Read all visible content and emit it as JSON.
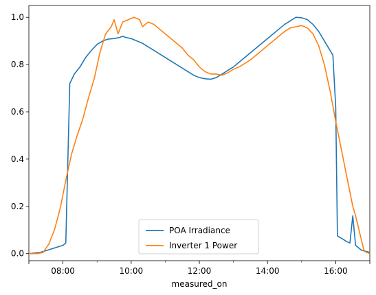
{
  "chart_data": {
    "type": "line",
    "title": "",
    "xlabel": "measured_on",
    "ylabel": "",
    "x_range": [
      "07:00",
      "17:00"
    ],
    "ylim": [
      -0.03,
      1.05
    ],
    "x_ticks": [
      "08:00",
      "10:00",
      "12:00",
      "14:00",
      "16:00"
    ],
    "y_ticks": [
      "0.0",
      "0.2",
      "0.4",
      "0.6",
      "0.8",
      "1.0"
    ],
    "grid": false,
    "legend_position": "bottom-center",
    "series": [
      {
        "name": "POA Irradiance",
        "color": "#1f77b4",
        "points": [
          [
            "07:00",
            0.0
          ],
          [
            "07:20",
            0.005
          ],
          [
            "07:40",
            0.02
          ],
          [
            "08:00",
            0.035
          ],
          [
            "08:05",
            0.045
          ],
          [
            "08:12",
            0.72
          ],
          [
            "08:20",
            0.76
          ],
          [
            "08:30",
            0.79
          ],
          [
            "08:40",
            0.83
          ],
          [
            "08:50",
            0.86
          ],
          [
            "09:00",
            0.885
          ],
          [
            "09:10",
            0.9
          ],
          [
            "09:20",
            0.908
          ],
          [
            "09:30",
            0.91
          ],
          [
            "09:40",
            0.915
          ],
          [
            "09:45",
            0.92
          ],
          [
            "09:50",
            0.915
          ],
          [
            "10:00",
            0.91
          ],
          [
            "10:10",
            0.9
          ],
          [
            "10:20",
            0.89
          ],
          [
            "10:30",
            0.875
          ],
          [
            "10:40",
            0.86
          ],
          [
            "10:50",
            0.845
          ],
          [
            "11:00",
            0.83
          ],
          [
            "11:10",
            0.815
          ],
          [
            "11:20",
            0.8
          ],
          [
            "11:30",
            0.785
          ],
          [
            "11:40",
            0.77
          ],
          [
            "11:50",
            0.755
          ],
          [
            "12:00",
            0.745
          ],
          [
            "12:10",
            0.74
          ],
          [
            "12:20",
            0.738
          ],
          [
            "12:30",
            0.745
          ],
          [
            "12:40",
            0.76
          ],
          [
            "12:50",
            0.775
          ],
          [
            "13:00",
            0.79
          ],
          [
            "13:10",
            0.81
          ],
          [
            "13:20",
            0.83
          ],
          [
            "13:30",
            0.85
          ],
          [
            "13:40",
            0.87
          ],
          [
            "13:50",
            0.89
          ],
          [
            "14:00",
            0.91
          ],
          [
            "14:10",
            0.93
          ],
          [
            "14:20",
            0.95
          ],
          [
            "14:30",
            0.97
          ],
          [
            "14:40",
            0.985
          ],
          [
            "14:50",
            1.0
          ],
          [
            "15:00",
            0.998
          ],
          [
            "15:10",
            0.99
          ],
          [
            "15:20",
            0.97
          ],
          [
            "15:30",
            0.94
          ],
          [
            "15:40",
            0.9
          ],
          [
            "15:50",
            0.86
          ],
          [
            "15:55",
            0.84
          ],
          [
            "16:00",
            0.62
          ],
          [
            "16:03",
            0.075
          ],
          [
            "16:10",
            0.065
          ],
          [
            "16:20",
            0.05
          ],
          [
            "16:25",
            0.045
          ],
          [
            "16:30",
            0.16
          ],
          [
            "16:35",
            0.035
          ],
          [
            "16:45",
            0.015
          ],
          [
            "17:00",
            0.005
          ]
        ]
      },
      {
        "name": "Inverter 1 Power",
        "color": "#ff7f0e",
        "points": [
          [
            "07:00",
            0.0
          ],
          [
            "07:15",
            0.0
          ],
          [
            "07:25",
            0.005
          ],
          [
            "07:35",
            0.04
          ],
          [
            "07:45",
            0.1
          ],
          [
            "07:55",
            0.19
          ],
          [
            "08:05",
            0.31
          ],
          [
            "08:15",
            0.42
          ],
          [
            "08:25",
            0.5
          ],
          [
            "08:35",
            0.57
          ],
          [
            "08:45",
            0.66
          ],
          [
            "08:55",
            0.74
          ],
          [
            "09:05",
            0.85
          ],
          [
            "09:15",
            0.93
          ],
          [
            "09:25",
            0.96
          ],
          [
            "09:30",
            0.99
          ],
          [
            "09:37",
            0.93
          ],
          [
            "09:45",
            0.98
          ],
          [
            "09:55",
            0.99
          ],
          [
            "10:05",
            1.0
          ],
          [
            "10:15",
            0.99
          ],
          [
            "10:20",
            0.96
          ],
          [
            "10:30",
            0.98
          ],
          [
            "10:40",
            0.97
          ],
          [
            "10:50",
            0.95
          ],
          [
            "11:00",
            0.93
          ],
          [
            "11:10",
            0.91
          ],
          [
            "11:20",
            0.89
          ],
          [
            "11:30",
            0.87
          ],
          [
            "11:40",
            0.84
          ],
          [
            "11:50",
            0.82
          ],
          [
            "12:00",
            0.79
          ],
          [
            "12:10",
            0.77
          ],
          [
            "12:20",
            0.76
          ],
          [
            "12:30",
            0.76
          ],
          [
            "12:40",
            0.755
          ],
          [
            "12:50",
            0.765
          ],
          [
            "13:00",
            0.78
          ],
          [
            "13:10",
            0.79
          ],
          [
            "13:20",
            0.805
          ],
          [
            "13:30",
            0.82
          ],
          [
            "13:40",
            0.84
          ],
          [
            "13:50",
            0.86
          ],
          [
            "14:00",
            0.88
          ],
          [
            "14:10",
            0.9
          ],
          [
            "14:20",
            0.92
          ],
          [
            "14:30",
            0.94
          ],
          [
            "14:40",
            0.955
          ],
          [
            "14:50",
            0.96
          ],
          [
            "15:00",
            0.965
          ],
          [
            "15:10",
            0.955
          ],
          [
            "15:20",
            0.93
          ],
          [
            "15:30",
            0.88
          ],
          [
            "15:40",
            0.8
          ],
          [
            "15:50",
            0.69
          ],
          [
            "16:00",
            0.56
          ],
          [
            "16:10",
            0.44
          ],
          [
            "16:20",
            0.32
          ],
          [
            "16:30",
            0.2
          ],
          [
            "16:35",
            0.16
          ],
          [
            "16:40",
            0.11
          ],
          [
            "16:45",
            0.06
          ],
          [
            "16:50",
            0.01
          ],
          [
            "17:00",
            0.0
          ]
        ]
      }
    ]
  }
}
